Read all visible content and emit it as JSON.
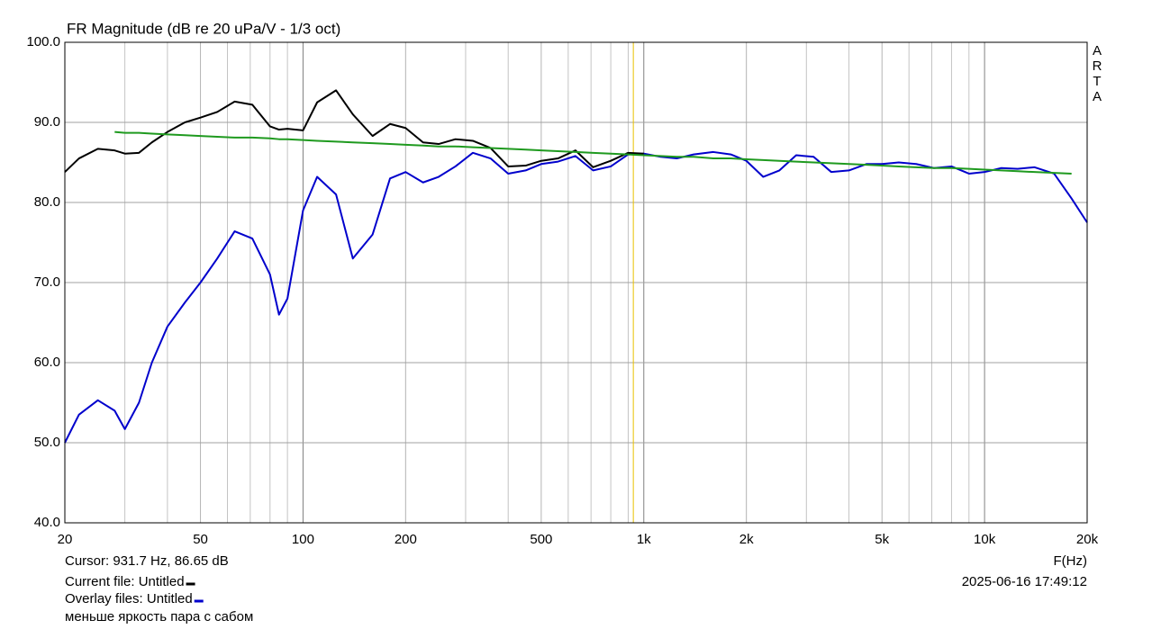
{
  "chart_data": {
    "type": "line",
    "title": "FR Magnitude (dB re 20 uPa/V - 1/3 oct)",
    "x_label": "F(Hz)",
    "side_label": [
      "A",
      "R",
      "T",
      "A"
    ],
    "log_x": true,
    "grid": true,
    "xlim": [
      20,
      20000
    ],
    "ylim": [
      40,
      100
    ],
    "xticks": [
      20,
      50,
      100,
      200,
      500,
      {
        "value": 1000,
        "label": "1k"
      },
      {
        "value": 2000,
        "label": "2k"
      },
      {
        "value": 5000,
        "label": "5k"
      },
      {
        "value": 10000,
        "label": "10k"
      },
      {
        "value": 20000,
        "label": "20k"
      }
    ],
    "x_minor_ticks": [
      30,
      40,
      60,
      70,
      80,
      90,
      300,
      400,
      600,
      700,
      800,
      900,
      3000,
      4000,
      6000,
      7000,
      8000,
      9000
    ],
    "yticks": [
      {
        "value": 40,
        "label": "40.0"
      },
      {
        "value": 50,
        "label": "50.0"
      },
      {
        "value": 60,
        "label": "60.0"
      },
      {
        "value": 70,
        "label": "70.0"
      },
      {
        "value": 80,
        "label": "80.0"
      },
      {
        "value": 90,
        "label": "90.0"
      },
      {
        "value": 100,
        "label": "100.0"
      }
    ],
    "cursor": {
      "x": 931.7,
      "y": 86.65,
      "label": "Cursor: 931.7 Hz, 86.65 dB",
      "color": "#e8c000"
    },
    "current_file": "Current file: Untitled",
    "overlay_files": "Overlay files: Untitled",
    "timestamp": "2025-06-16  17:49:12",
    "note": "меньше яркость пара с сабом",
    "x": [
      20,
      22,
      25,
      28,
      30,
      33,
      36,
      40,
      45,
      50,
      56,
      63,
      71,
      80,
      85,
      90,
      100,
      110,
      125,
      140,
      160,
      180,
      200,
      225,
      250,
      280,
      315,
      355,
      400,
      450,
      500,
      560,
      630,
      710,
      800,
      900,
      1000,
      1120,
      1250,
      1400,
      1600,
      1800,
      2000,
      2240,
      2500,
      2800,
      3150,
      3550,
      4000,
      4500,
      5000,
      5600,
      6300,
      7100,
      8000,
      9000,
      10000,
      11200,
      12500,
      14000,
      16000,
      18000,
      20000
    ],
    "series": [
      {
        "color": "#0000cc",
        "values": [
          50,
          53.5,
          55.3,
          54,
          51.7,
          55,
          60,
          64.5,
          67.5,
          70,
          73,
          76.4,
          75.5,
          71,
          66,
          68,
          79,
          83.2,
          81,
          73,
          76,
          83,
          83.8,
          82.5,
          83.2,
          84.5,
          86.2,
          85.5,
          83.6,
          84,
          84.8,
          85.1,
          85.8,
          84,
          84.5,
          86,
          86.1,
          85.7,
          85.5,
          86,
          86.3,
          86,
          85.2,
          83.2,
          84,
          85.9,
          85.7,
          83.8,
          84,
          84.8,
          84.8,
          85,
          84.8,
          84.3,
          84.5,
          83.6,
          83.8,
          84.3,
          84.2,
          84.4,
          83.6,
          80.5,
          77.5
        ]
      },
      {
        "color": "#000000",
        "values": [
          83.8,
          85.5,
          86.7,
          86.5,
          86.1,
          86.2,
          87.5,
          88.8,
          90,
          90.6,
          91.3,
          92.6,
          92.2,
          89.5,
          89.1,
          89.2,
          89,
          92.5,
          94,
          91,
          88.3,
          89.8,
          89.3,
          87.5,
          87.3,
          87.9,
          87.7,
          86.8,
          84.5,
          84.6,
          85.2,
          85.5,
          86.5,
          84.4,
          85.2,
          86.2,
          86.1,
          null,
          null,
          null,
          null,
          null,
          null,
          null,
          null,
          null,
          null,
          null,
          null,
          null,
          null,
          null,
          null,
          null,
          null,
          null,
          null,
          null,
          null,
          null,
          null,
          null,
          null
        ]
      },
      {
        "color": "#1f9a1f",
        "values": [
          null,
          null,
          null,
          88.8,
          88.7,
          88.7,
          88.6,
          88.5,
          88.4,
          88.3,
          88.2,
          88.1,
          88.1,
          88,
          87.9,
          87.9,
          87.8,
          87.7,
          87.6,
          87.5,
          87.4,
          87.3,
          87.2,
          87.1,
          87,
          87,
          86.9,
          86.8,
          86.7,
          86.6,
          86.5,
          86.4,
          86.3,
          86.2,
          86.1,
          86,
          85.9,
          85.8,
          85.7,
          85.7,
          85.5,
          85.5,
          85.4,
          85.3,
          85.2,
          85.1,
          85,
          84.9,
          84.8,
          84.7,
          84.6,
          84.5,
          84.4,
          84.3,
          84.3,
          84.2,
          84.1,
          84,
          83.9,
          83.8,
          83.7,
          83.6,
          null
        ]
      }
    ]
  }
}
